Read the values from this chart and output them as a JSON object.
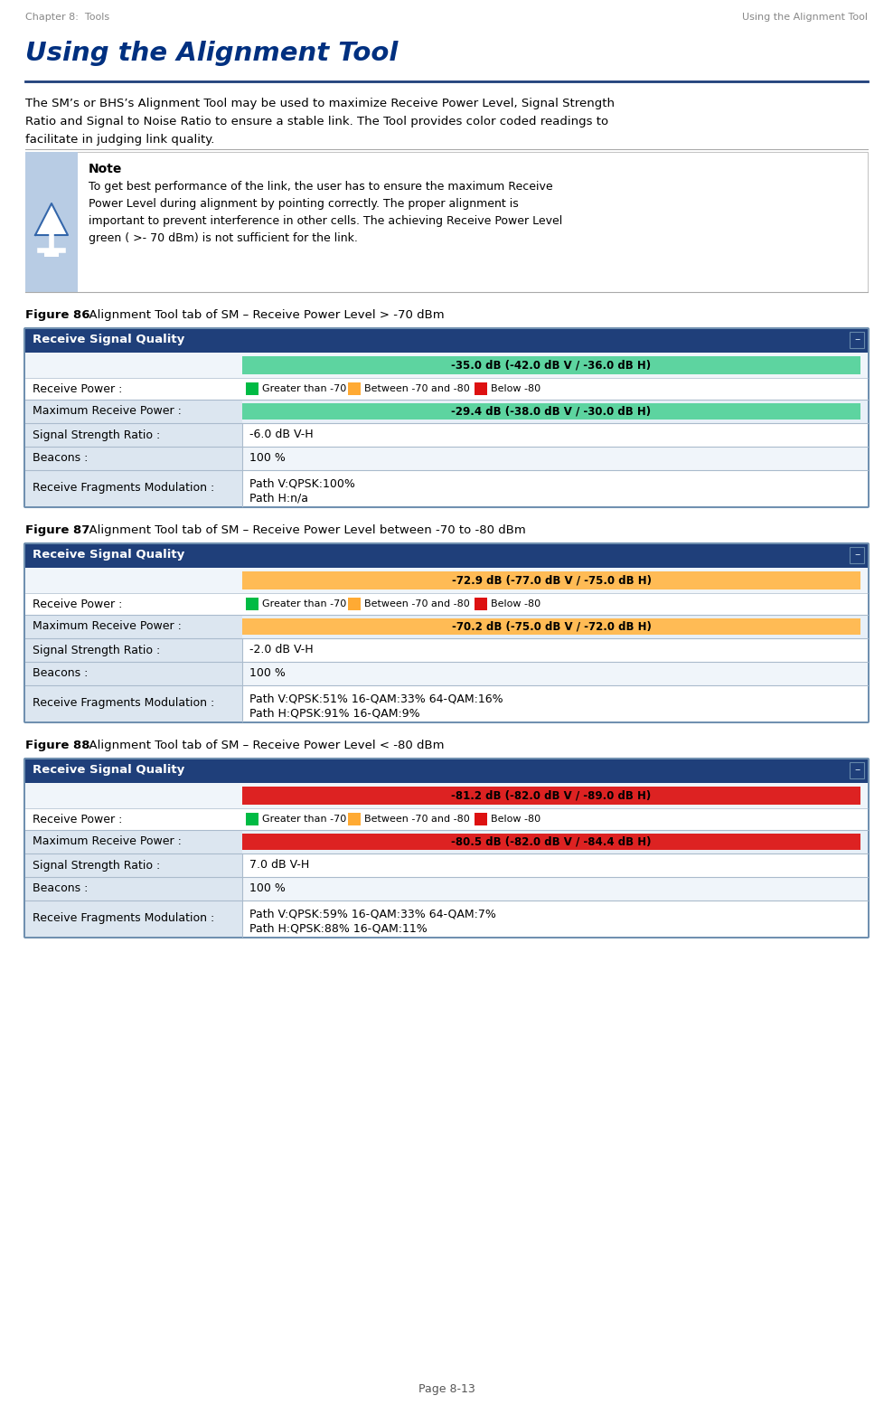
{
  "page_header_left": "Chapter 8:  Tools",
  "page_header_right": "Using the Alignment Tool",
  "title": "Using the Alignment Tool",
  "body_text_line1": "The SM’s or BHS’s Alignment Tool may be used to maximize Receive Power Level, Signal Strength",
  "body_text_line2": "Ratio and Signal to Noise Ratio to ensure a stable link. The Tool provides color coded readings to",
  "body_text_line3": "facilitate in judging link quality.",
  "note_title": "Note",
  "note_line1": "To get best performance of the link, the user has to ensure the maximum Receive",
  "note_line2": "Power Level during alignment by pointing correctly. The proper alignment is",
  "note_line3": "important to prevent interference in other cells. The achieving Receive Power Level",
  "note_line4": "green ( >- 70 dBm) is not sufficient for the link.",
  "figure86_label": "Figure 86",
  "figure86_caption": "  Alignment Tool tab of SM – Receive Power Level > -70 dBm",
  "figure87_label": "Figure 87",
  "figure87_caption": "  Alignment Tool tab of SM – Receive Power Level between -70 to -80 dBm",
  "figure88_label": "Figure 88",
  "figure88_caption": "  Alignment Tool tab of SM – Receive Power Level < -80 dBm",
  "page_footer": "Page 8-13",
  "bg_color": "#ffffff",
  "header_color": "#888888",
  "title_color": "#003080",
  "body_text_color": "#000000",
  "note_icon_bg": "#b8cce4",
  "note_border_color": "#aaaaaa",
  "table_header_bg": "#1f3f7a",
  "table_header_fg": "#ffffff",
  "green_bar": "#5dd4a0",
  "yellow_bar": "#ffbb55",
  "red_bar": "#dd2222",
  "green_sq": "#00bb44",
  "yellow_sq": "#ffaa33",
  "red_sq": "#dd1111",
  "legend_text_color": "#000000",
  "row_alt_bg": "#e8f0f8",
  "row_white_bg": "#ffffff",
  "col_label_bg": "#dce6f0",
  "table_border": "#7090b0",
  "divider_color": "#aabbcc",
  "hr_color": "#1f3f7a",
  "figure_caption_bold": "#000000",
  "figures": [
    {
      "header": "Receive Signal Quality",
      "receive_power_bar_text": "-35.0 dB (-42.0 dB V / -36.0 dB H)",
      "receive_power_bar_color": "#5dd4a0",
      "legend_green": "Greater than -70",
      "legend_yellow": "Between -70 and -80",
      "legend_red": "Below -80",
      "max_receive_power_text": "-29.4 dB (-38.0 dB V / -30.0 dB H)",
      "max_receive_power_bar_color": "#5dd4a0",
      "signal_strength_ratio": "-6.0 dB V-H",
      "beacons": "100 %",
      "fragments_line1": "Path V:QPSK:100%",
      "fragments_line2": "Path H:n/a"
    },
    {
      "header": "Receive Signal Quality",
      "receive_power_bar_text": "-72.9 dB (-77.0 dB V / -75.0 dB H)",
      "receive_power_bar_color": "#ffbb55",
      "legend_green": "Greater than -70",
      "legend_yellow": "Between -70 and -80",
      "legend_red": "Below -80",
      "max_receive_power_text": "-70.2 dB (-75.0 dB V / -72.0 dB H)",
      "max_receive_power_bar_color": "#ffbb55",
      "signal_strength_ratio": "-2.0 dB V-H",
      "beacons": "100 %",
      "fragments_line1": "Path V:QPSK:51% 16-QAM:33% 64-QAM:16%",
      "fragments_line2": "Path H:QPSK:91% 16-QAM:9%"
    },
    {
      "header": "Receive Signal Quality",
      "receive_power_bar_text": "-81.2 dB (-82.0 dB V / -89.0 dB H)",
      "receive_power_bar_color": "#dd2222",
      "legend_green": "Greater than -70",
      "legend_yellow": "Between -70 and -80",
      "legend_red": "Below -80",
      "max_receive_power_text": "-80.5 dB (-82.0 dB V / -84.4 dB H)",
      "max_receive_power_bar_color": "#dd2222",
      "signal_strength_ratio": "7.0 dB V-H",
      "beacons": "100 %",
      "fragments_line1": "Path V:QPSK:59% 16-QAM:33% 64-QAM:7%",
      "fragments_line2": "Path H:QPSK:88% 16-QAM:11%"
    }
  ]
}
